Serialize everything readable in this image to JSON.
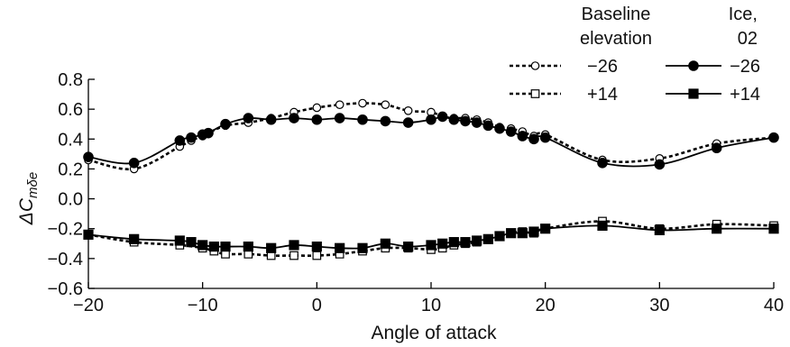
{
  "chart_data": {
    "type": "line",
    "xlabel": "Angle of attack",
    "ylabel": "ΔC",
    "ylabel_sub": "mδe",
    "xlim": [
      -20,
      40
    ],
    "ylim": [
      -0.6,
      0.8
    ],
    "x_ticks": [
      -20,
      -10,
      0,
      10,
      20,
      30,
      40
    ],
    "x_tick_labels": [
      "−20",
      "−10",
      "0",
      "10",
      "20",
      "30",
      "40"
    ],
    "y_ticks": [
      -0.6,
      -0.4,
      -0.2,
      0.0,
      0.2,
      0.4,
      0.6,
      0.8
    ],
    "y_tick_labels": [
      "−0.6",
      "−0.4",
      "−0.2",
      "0.0",
      "0.2",
      "0.4",
      "0.6",
      "0.8"
    ],
    "grid": false,
    "legend": {
      "position": "top-right",
      "headers": [
        "Baseline elevation",
        "Ice, 02"
      ],
      "header_lines": {
        "baseline": [
          "Baseline",
          "elevation"
        ],
        "ice": [
          "Ice,",
          "02"
        ]
      },
      "entries": [
        {
          "label": "−26",
          "series": 0
        },
        {
          "label": "−26",
          "series": 1
        },
        {
          "label": "+14",
          "series": 2
        },
        {
          "label": "+14",
          "series": 3
        }
      ]
    },
    "series": [
      {
        "group": "baseline",
        "elevation": "−26",
        "marker": "open-circle",
        "line": "dashed",
        "color": "#000000",
        "x": [
          -20,
          -16,
          -12,
          -11,
          -10,
          -9.5,
          -8,
          -6,
          -4,
          -2,
          0,
          2,
          4,
          6,
          8,
          10,
          11,
          12,
          13,
          14,
          15,
          16,
          17,
          18,
          19,
          20,
          25,
          30,
          35,
          40
        ],
        "y": [
          0.26,
          0.2,
          0.35,
          0.39,
          0.42,
          0.44,
          0.49,
          0.51,
          0.54,
          0.58,
          0.61,
          0.63,
          0.64,
          0.63,
          0.59,
          0.58,
          0.55,
          0.54,
          0.54,
          0.53,
          0.51,
          0.48,
          0.47,
          0.45,
          0.42,
          0.43,
          0.26,
          0.27,
          0.37,
          0.41
        ]
      },
      {
        "group": "ice",
        "elevation": "−26",
        "marker": "filled-circle",
        "line": "solid",
        "color": "#000000",
        "x": [
          -20,
          -16,
          -12,
          -11,
          -10,
          -9.5,
          -8,
          -6,
          -4,
          -2,
          0,
          2,
          4,
          6,
          8,
          10,
          11,
          12,
          13,
          14,
          15,
          16,
          17,
          18,
          19,
          20,
          25,
          30,
          35,
          40
        ],
        "y": [
          0.28,
          0.24,
          0.39,
          0.41,
          0.43,
          0.44,
          0.5,
          0.54,
          0.53,
          0.54,
          0.53,
          0.54,
          0.53,
          0.52,
          0.51,
          0.53,
          0.55,
          0.53,
          0.52,
          0.51,
          0.49,
          0.47,
          0.45,
          0.42,
          0.4,
          0.41,
          0.24,
          0.23,
          0.34,
          0.41
        ]
      },
      {
        "group": "baseline",
        "elevation": "+14",
        "marker": "open-square",
        "line": "dashed",
        "color": "#000000",
        "x": [
          -20,
          -16,
          -12,
          -10,
          -9,
          -8,
          -6,
          -4,
          -2,
          0,
          2,
          4,
          6,
          8,
          10,
          11,
          12,
          13,
          14,
          15,
          16,
          17,
          18,
          19,
          20,
          25,
          30,
          35,
          40
        ],
        "y": [
          -0.24,
          -0.29,
          -0.31,
          -0.33,
          -0.35,
          -0.37,
          -0.37,
          -0.38,
          -0.38,
          -0.38,
          -0.37,
          -0.35,
          -0.33,
          -0.33,
          -0.34,
          -0.33,
          -0.31,
          -0.3,
          -0.29,
          -0.27,
          -0.25,
          -0.23,
          -0.22,
          -0.23,
          -0.2,
          -0.15,
          -0.2,
          -0.17,
          -0.18
        ]
      },
      {
        "group": "ice",
        "elevation": "+14",
        "marker": "filled-square",
        "line": "solid",
        "color": "#000000",
        "x": [
          -20,
          -16,
          -12,
          -11,
          -10,
          -9,
          -8,
          -6,
          -4,
          -2,
          0,
          2,
          4,
          6,
          8,
          10,
          11,
          12,
          13,
          14,
          15,
          16,
          17,
          18,
          19,
          20,
          25,
          30,
          35,
          40
        ],
        "y": [
          -0.24,
          -0.27,
          -0.28,
          -0.29,
          -0.31,
          -0.32,
          -0.32,
          -0.32,
          -0.33,
          -0.31,
          -0.32,
          -0.33,
          -0.33,
          -0.3,
          -0.32,
          -0.31,
          -0.3,
          -0.29,
          -0.29,
          -0.28,
          -0.27,
          -0.25,
          -0.23,
          -0.23,
          -0.22,
          -0.2,
          -0.18,
          -0.21,
          -0.2,
          -0.2
        ]
      }
    ]
  }
}
